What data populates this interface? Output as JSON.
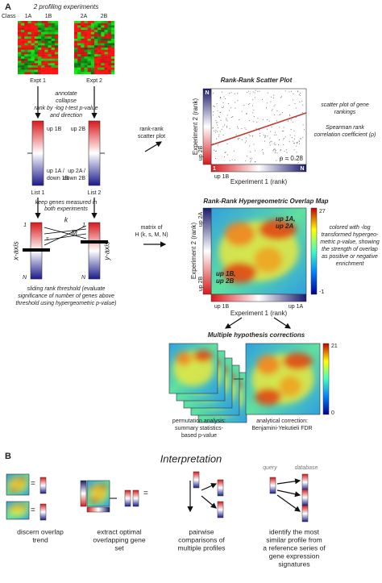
{
  "panel_a": {
    "label": "A",
    "subtitle": "2 profiling experiments",
    "class_label": "Class",
    "classes": [
      "1A",
      "1B",
      "2A",
      "2B"
    ],
    "experiments": [
      "Expt 1",
      "Expt 2"
    ],
    "process_steps": [
      "annotate",
      "collapse",
      "rank by -log t-test p-value",
      "and direction"
    ],
    "list1_labels": [
      "up 1B",
      "up 1A /",
      "down 1B"
    ],
    "list2_labels": [
      "up 2B",
      "up 2A /",
      "down 2B"
    ],
    "lists": [
      "List 1",
      "List 2"
    ],
    "keep_note": [
      "keep genes measured in",
      "both experiments"
    ],
    "threshold_labels": {
      "k": "k",
      "M": "M",
      "s": "s",
      "one": "1",
      "N": "N",
      "x_axis": "x-axis",
      "y_axis": "y-axis"
    },
    "sliding_note": [
      "sliding rank threshold (evaluate",
      "significance of number of genes above",
      "threshold using hypergeometric p-value)"
    ],
    "rank_rank_note": [
      "rank-rank",
      "scatter plot"
    ],
    "matrix_note": [
      "matrix of",
      "H (k, s, M, N)"
    ],
    "scatter": {
      "title": "Rank-Rank Scatter Plot",
      "y_label": "Experiment 2 (rank)",
      "x_label": "Experiment 1 (rank)",
      "top": "N",
      "left_bottom": "up 2B",
      "bottom_left": "up 1B",
      "one": "1",
      "right": "N",
      "rho": "ρ = 0.28",
      "notes": [
        "scatter plot of gene",
        "rankings",
        "Spearman rank",
        "correlation coefficient (ρ)"
      ]
    },
    "overlap_map": {
      "title": "Rank-Rank Hypergeometric Overlap Map",
      "y_label": "Experiment 2 (rank)",
      "x_label": "Experiment 1 (rank)",
      "upper": [
        "up 1A,",
        "up 2A"
      ],
      "lower": [
        "up 1B,",
        "up 2B"
      ],
      "y_top": "up 2A",
      "y_bottom": "up 2B",
      "x_left": "up 1B",
      "x_right": "up 1A",
      "scale_max": "27",
      "scale_min": "-1",
      "notes": [
        "colored with -log",
        "transformed hypergeo-",
        "metric p-value, showing",
        "the strength of overlap",
        "as positive or negative",
        "enrichment"
      ]
    },
    "corrections": {
      "title": "Multiple hypothesis corrections",
      "scale_max": "21",
      "scale_min": "0",
      "permutation": [
        "permutation analysis:",
        "summary statistics-",
        "based p-value"
      ],
      "analytical": [
        "analytical correction:",
        "Benjamini-Yekutieli FDR"
      ]
    }
  },
  "panel_b": {
    "label": "B",
    "title": "Interpretation",
    "query": "query",
    "database": "database",
    "captions": [
      [
        "discern overlap",
        "trend"
      ],
      [
        "extract optimal",
        "overlapping gene",
        "set"
      ],
      [
        "pairwise",
        "comparisons of",
        "multiple profiles"
      ],
      [
        "identify the most",
        "similar profile from",
        "a reference series of",
        "gene expression",
        "signatures"
      ]
    ]
  }
}
